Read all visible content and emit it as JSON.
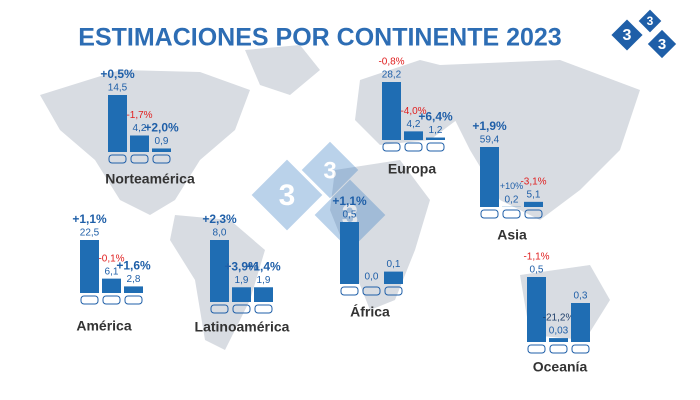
{
  "header": {
    "title": "ESTIMACIONES POR CONTINENTE 2023",
    "logo": [
      "3",
      "3",
      "3"
    ]
  },
  "chart_data": [
    {
      "type": "bar",
      "title": "Norteamérica",
      "categories": [
        null,
        null,
        null
      ],
      "color": "#1f6db3",
      "values": [
        14.5,
        4.2,
        0.9
      ],
      "value_labels": [
        "14,5",
        "4,2",
        "0,9"
      ],
      "changes": [
        0.5,
        -1.7,
        2.0
      ],
      "change_labels": [
        "+0,5%",
        "-1,7%",
        "+2,0%"
      ]
    },
    {
      "type": "bar",
      "title": "Europa",
      "categories": [
        null,
        null,
        null
      ],
      "color": "#1f6db3",
      "values": [
        28.2,
        4.2,
        1.2
      ],
      "value_labels": [
        "28,2",
        "4,2",
        "1,2"
      ],
      "changes": [
        -0.8,
        -4.0,
        6.4
      ],
      "change_labels": [
        "-0,8%",
        "-4,0%",
        "+6,4%"
      ]
    },
    {
      "type": "bar",
      "title": "Asia",
      "categories": [
        null,
        null,
        null
      ],
      "color": "#1f6db3",
      "values": [
        59.4,
        0.2,
        5.1
      ],
      "value_labels": [
        "59,4",
        "0,2",
        "5,1"
      ],
      "changes": [
        1.9,
        10,
        -3.1
      ],
      "change_labels": [
        "+1,9%",
        "+10%",
        "-3,1%"
      ]
    },
    {
      "type": "bar",
      "title": "América",
      "categories": [
        null,
        null,
        null
      ],
      "color": "#1f6db3",
      "values": [
        22.5,
        6.1,
        2.8
      ],
      "value_labels": [
        "22,5",
        "6,1",
        "2,8"
      ],
      "changes": [
        1.1,
        -0.1,
        1.6
      ],
      "change_labels": [
        "+1,1%",
        "-0,1%",
        "+1,6%"
      ]
    },
    {
      "type": "bar",
      "title": "Latinoamérica",
      "categories": [
        null,
        null,
        null
      ],
      "color": "#1f6db3",
      "values": [
        8.0,
        1.9,
        1.9
      ],
      "value_labels": [
        "8,0",
        "1,9",
        "1,9"
      ],
      "changes": [
        2.3,
        3.9,
        1.4
      ],
      "change_labels": [
        "+2,3%",
        "+3,9%",
        "+1,4%"
      ]
    },
    {
      "type": "bar",
      "title": "África",
      "categories": [
        null,
        null,
        null
      ],
      "color": "#1f6db3",
      "values": [
        0.5,
        0.0,
        0.1
      ],
      "value_labels": [
        "0,5",
        "0,0",
        "0,1"
      ],
      "changes": [
        1.1,
        null,
        null
      ],
      "change_labels": [
        "+1,1%",
        null,
        null
      ]
    },
    {
      "type": "bar",
      "title": "Oceanía",
      "categories": [
        null,
        null,
        null
      ],
      "color": "#1f6db3",
      "values": [
        0.5,
        0.03,
        0.3
      ],
      "value_labels": [
        "0,5",
        "0,03",
        "0,3"
      ],
      "changes": [
        -1.1,
        -21.2,
        null
      ],
      "change_labels": [
        "-1,1%",
        "-21,2%",
        null
      ]
    }
  ]
}
